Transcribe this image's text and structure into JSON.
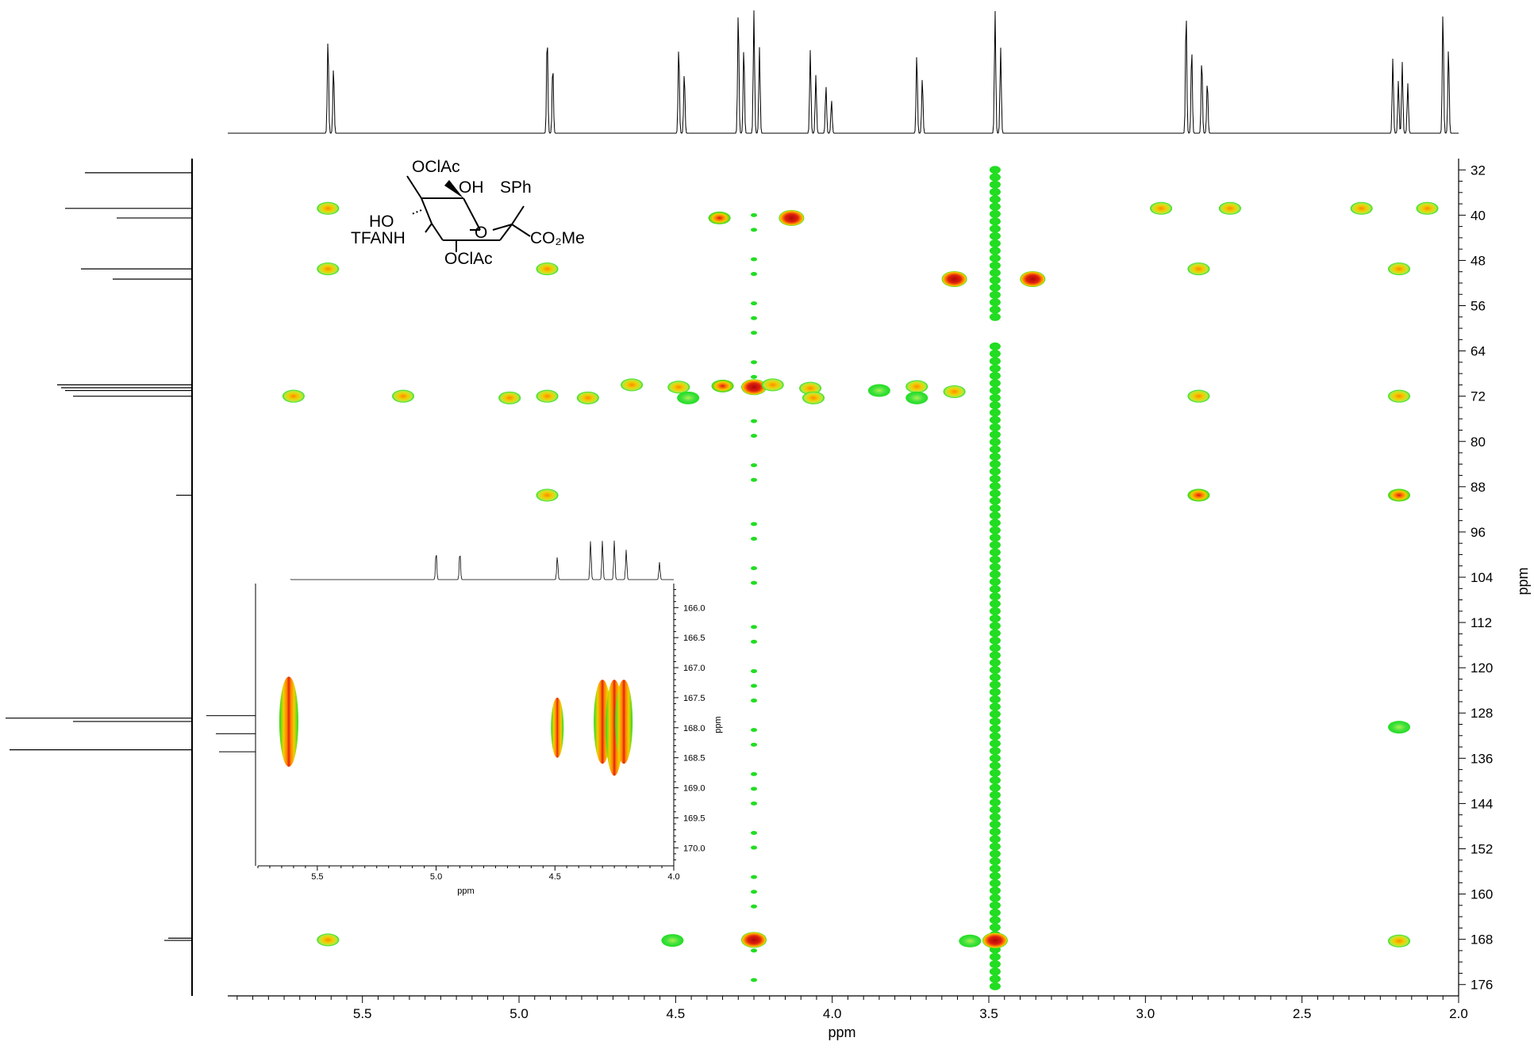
{
  "chart_data": {
    "type": "heatmap",
    "subtype": "2D NMR HMBC spectrum with 1D projections",
    "xlabel": "ppm",
    "ylabel": "ppm",
    "x_ticks": [
      "5.5",
      "5.0",
      "4.5",
      "4.0",
      "3.5",
      "3.0",
      "2.5",
      "2.0"
    ],
    "y_ticks": [
      "32",
      "40",
      "48",
      "56",
      "64",
      "72",
      "80",
      "88",
      "96",
      "104",
      "112",
      "120",
      "128",
      "136",
      "144",
      "152",
      "160",
      "168",
      "176"
    ],
    "x_range": [
      5.93,
      2.0
    ],
    "y_range": [
      30,
      178
    ],
    "x_axis_reversed": true,
    "y_axis_increases_downward": true,
    "color_scale": [
      "#22dd22",
      "#f0d000",
      "#ff8000",
      "#cc1010"
    ],
    "cross_peaks": [
      {
        "x": 5.61,
        "y": 38.8,
        "i": 2
      },
      {
        "x": 2.95,
        "y": 38.8,
        "i": 2
      },
      {
        "x": 2.73,
        "y": 38.8,
        "i": 2
      },
      {
        "x": 2.31,
        "y": 38.8,
        "i": 2
      },
      {
        "x": 2.1,
        "y": 38.8,
        "i": 2
      },
      {
        "x": 4.36,
        "y": 40.5,
        "i": 3
      },
      {
        "x": 4.13,
        "y": 40.5,
        "i": 4
      },
      {
        "x": 5.61,
        "y": 49.5,
        "i": 2
      },
      {
        "x": 4.91,
        "y": 49.5,
        "i": 2
      },
      {
        "x": 2.83,
        "y": 49.5,
        "i": 2
      },
      {
        "x": 2.19,
        "y": 49.5,
        "i": 2
      },
      {
        "x": 3.61,
        "y": 51.3,
        "i": 4
      },
      {
        "x": 3.36,
        "y": 51.3,
        "i": 4
      },
      {
        "x": 4.64,
        "y": 70.0,
        "i": 2
      },
      {
        "x": 4.49,
        "y": 70.4,
        "i": 2
      },
      {
        "x": 4.35,
        "y": 70.2,
        "i": 3
      },
      {
        "x": 4.25,
        "y": 70.4,
        "i": 4
      },
      {
        "x": 4.19,
        "y": 70.0,
        "i": 2
      },
      {
        "x": 4.07,
        "y": 70.6,
        "i": 2
      },
      {
        "x": 3.85,
        "y": 71.0,
        "i": 1
      },
      {
        "x": 3.73,
        "y": 70.3,
        "i": 2
      },
      {
        "x": 3.61,
        "y": 71.2,
        "i": 2
      },
      {
        "x": 5.72,
        "y": 72.0,
        "i": 2
      },
      {
        "x": 5.37,
        "y": 72.0,
        "i": 2
      },
      {
        "x": 5.03,
        "y": 72.3,
        "i": 2
      },
      {
        "x": 4.91,
        "y": 72.0,
        "i": 2
      },
      {
        "x": 4.78,
        "y": 72.3,
        "i": 2
      },
      {
        "x": 4.46,
        "y": 72.3,
        "i": 1
      },
      {
        "x": 4.06,
        "y": 72.3,
        "i": 2
      },
      {
        "x": 3.73,
        "y": 72.3,
        "i": 1
      },
      {
        "x": 2.83,
        "y": 72.0,
        "i": 2
      },
      {
        "x": 2.19,
        "y": 72.0,
        "i": 2
      },
      {
        "x": 4.91,
        "y": 89.5,
        "i": 2
      },
      {
        "x": 2.83,
        "y": 89.5,
        "i": 3
      },
      {
        "x": 2.19,
        "y": 89.5,
        "i": 3
      },
      {
        "x": 2.19,
        "y": 130.5,
        "i": 1
      },
      {
        "x": 5.61,
        "y": 168.1,
        "i": 2
      },
      {
        "x": 4.51,
        "y": 168.2,
        "i": 1
      },
      {
        "x": 4.25,
        "y": 168.1,
        "i": 4
      },
      {
        "x": 3.56,
        "y": 168.3,
        "i": 1
      },
      {
        "x": 3.48,
        "y": 168.2,
        "i": 4
      },
      {
        "x": 2.19,
        "y": 168.3,
        "i": 2
      }
    ],
    "proton_projection_peaks": [
      5.61,
      4.91,
      4.49,
      4.3,
      4.25,
      4.07,
      4.02,
      3.73,
      3.48,
      2.87,
      2.82,
      2.21,
      2.18,
      2.05
    ],
    "carbon_projection_peaks": [
      32.5,
      38.8,
      40.5,
      49.5,
      51.3,
      70.0,
      70.5,
      71.0,
      72.0,
      89.5,
      128.9,
      129.5,
      134.5,
      167.8,
      168.2
    ],
    "inset": {
      "xlabel": "ppm",
      "ylabel": "ppm",
      "x_ticks": [
        "5.5",
        "5.0",
        "4.5",
        "4.0"
      ],
      "y_ticks": [
        "166.0",
        "166.5",
        "167.0",
        "167.5",
        "168.0",
        "168.5",
        "169.0",
        "169.5",
        "170.0"
      ],
      "x_range": [
        5.75,
        4.0
      ],
      "y_range": [
        165.6,
        170.3
      ],
      "cross_peaks": [
        {
          "x": 5.62,
          "y": 167.9,
          "h": 1.5
        },
        {
          "x": 4.49,
          "y": 168.0,
          "h": 1.0
        },
        {
          "x": 4.3,
          "y": 167.9,
          "h": 1.4
        },
        {
          "x": 4.25,
          "y": 168.0,
          "h": 1.6
        },
        {
          "x": 4.21,
          "y": 167.9,
          "h": 1.4
        }
      ]
    },
    "structure": {
      "labels": [
        "OClAc",
        "OH",
        "SPh",
        "HO",
        "O",
        "CO₂Me",
        "TFANH",
        "OClAc"
      ]
    }
  }
}
